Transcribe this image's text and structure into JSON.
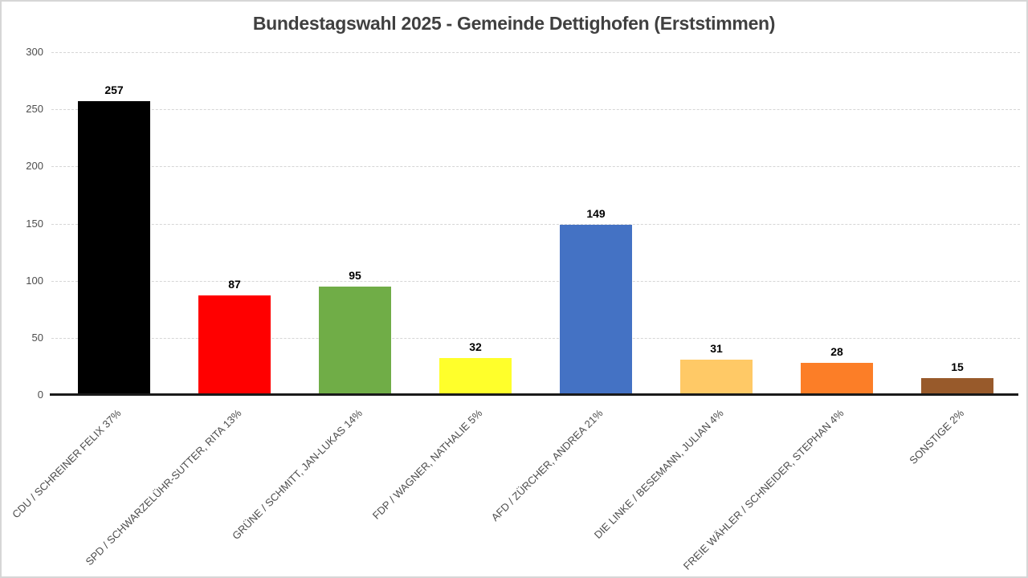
{
  "chart_data": {
    "type": "bar",
    "title": "Bundestagswahl 2025 - Gemeinde Dettighofen (Erststimmen)",
    "xlabel": "",
    "ylabel": "",
    "categories": [
      "CDU / SCHREINER FELIX 37%",
      "SPD / SCHWARZELÜHR-SUTTER, RITA 13%",
      "GRÜNE / SCHMITT, JAN-LUKAS 14%",
      "FDP / WAGNER, NATHALIE 5%",
      "AFD / ZÜRCHER, ANDREA 21%",
      "DIE LINKE / BESEMANN, JULIAN 4%",
      "FREIE WÄHLER / SCHNEIDER, STEPHAN 4%",
      "SONSTIGE 2%"
    ],
    "values": [
      257,
      87,
      95,
      32,
      149,
      31,
      28,
      15
    ],
    "bar_colors": [
      "#000000",
      "#FF0000",
      "#70AD47",
      "#FFFF2B",
      "#4472C4",
      "#FFC966",
      "#FC7E27",
      "#985A2B"
    ],
    "ylim": [
      0,
      300
    ],
    "yticks": [
      0,
      50,
      100,
      150,
      200,
      250,
      300
    ],
    "grid": true,
    "gridline_style": "dashed",
    "legend": "none",
    "value_labels": "above-bars",
    "category_label_rotation_deg": 45
  },
  "colors": {
    "title_text": "#404040",
    "axis_text": "#4D4D4D",
    "value_label_text": "#000000",
    "gridline": "#D6D6D6",
    "axis_line": "#1A1A1A",
    "background": "#FFFFFF",
    "frame_border": "#D6D6D6"
  }
}
